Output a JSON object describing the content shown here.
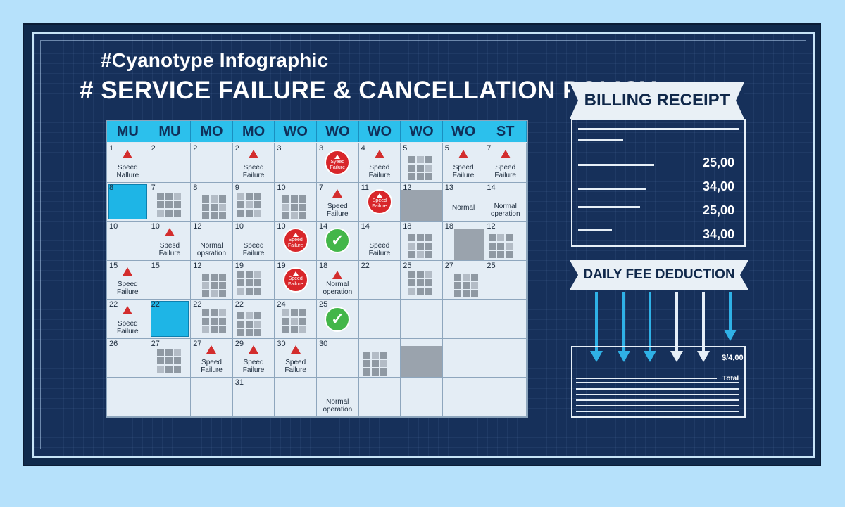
{
  "header": {
    "subtitle": "#Cyanotype Infographic",
    "title": "# SERVICE FAILURE & CANCELLATION POLICY"
  },
  "calendar": {
    "day_headers": [
      "MU",
      "MU",
      "MO",
      "MO",
      "WO",
      "WO",
      "WO",
      "WO",
      "WO",
      "ST"
    ],
    "rows": [
      [
        {
          "num": "1",
          "icon": "warning-triangle",
          "label": "Speed\nNallure"
        },
        {
          "num": "2"
        },
        {
          "num": "2"
        },
        {
          "num": "2",
          "icon": "warning-triangle",
          "label": "Speed\nFailure"
        },
        {
          "num": "3"
        },
        {
          "num": "3",
          "icon": "red-circle",
          "circle_text": "Syeed\nFailure"
        },
        {
          "num": "4",
          "icon": "warning-triangle",
          "label": "Speed\nFailure"
        },
        {
          "num": "5",
          "pattern": "grid"
        },
        {
          "num": "5",
          "icon": "warning-triangle",
          "label": "Speed\nFailure"
        },
        {
          "num": "7",
          "icon": "warning-triangle",
          "label": "Speed\nFailure"
        }
      ],
      [
        {
          "num": "8",
          "fill": "blue"
        },
        {
          "num": "7",
          "pattern": "grid"
        },
        {
          "num": "8",
          "pattern": "grid"
        },
        {
          "num": "9",
          "pattern": "grid"
        },
        {
          "num": "10",
          "pattern": "grid"
        },
        {
          "num": "7",
          "icon": "warning-triangle",
          "label": "Speed\nFailure"
        },
        {
          "num": "11",
          "icon": "red-circle",
          "circle_text": "Speed\nFailure"
        },
        {
          "num": "12",
          "pattern": "shade"
        },
        {
          "num": "13",
          "label": "Normal"
        },
        {
          "num": "14",
          "label": "Normal\noperation"
        }
      ],
      [
        {
          "num": "10"
        },
        {
          "num": "10",
          "icon": "warning-triangle",
          "label": "Spesd\nFailure"
        },
        {
          "num": "12",
          "label": "Normal\nopsration"
        },
        {
          "num": "10",
          "label": "Speed\nFailure"
        },
        {
          "num": "10",
          "icon": "red-circle",
          "circle_text": "Speed\nFailure"
        },
        {
          "num": "14",
          "icon": "green-check"
        },
        {
          "num": "14",
          "label": "Speed\nFailure"
        },
        {
          "num": "18",
          "pattern": "grid"
        },
        {
          "num": "18",
          "pattern": "shade"
        },
        {
          "num": "12",
          "pattern": "grid"
        }
      ],
      [
        {
          "num": "15",
          "icon": "warning-triangle",
          "label": "Speed\nFailure"
        },
        {
          "num": "15"
        },
        {
          "num": "12",
          "pattern": "grid"
        },
        {
          "num": "19",
          "pattern": "grid"
        },
        {
          "num": "19",
          "icon": "red-circle",
          "circle_text": "Speed\nFailure"
        },
        {
          "num": "18",
          "icon": "warning-triangle",
          "label": "Normal\noperation"
        },
        {
          "num": "22"
        },
        {
          "num": "25",
          "pattern": "grid"
        },
        {
          "num": "27",
          "pattern": "grid"
        },
        {
          "num": "25"
        }
      ],
      [
        {
          "num": "22",
          "icon": "warning-triangle",
          "label": "Speed\nFailure"
        },
        {
          "num": "22",
          "fill": "blue"
        },
        {
          "num": "22",
          "pattern": "grid"
        },
        {
          "num": "22",
          "pattern": "grid"
        },
        {
          "num": "24",
          "pattern": "grid"
        },
        {
          "num": "25",
          "icon": "green-check"
        },
        {
          "num": ""
        },
        {
          "num": ""
        },
        {
          "num": ""
        },
        {
          "num": ""
        }
      ],
      [
        {
          "num": "26"
        },
        {
          "num": "27",
          "pattern": "grid"
        },
        {
          "num": "27",
          "icon": "warning-triangle",
          "label": "Speed\nFailure"
        },
        {
          "num": "29",
          "icon": "warning-triangle",
          "label": "Speed\nFailure"
        },
        {
          "num": "30",
          "icon": "warning-triangle",
          "label": "Speed\nFailure"
        },
        {
          "num": "30"
        },
        {
          "num": "",
          "pattern": "grid"
        },
        {
          "num": "",
          "pattern": "shade"
        },
        {
          "num": ""
        },
        {
          "num": ""
        }
      ],
      [
        {
          "num": ""
        },
        {
          "num": ""
        },
        {
          "num": ""
        },
        {
          "num": "31"
        },
        {
          "num": ""
        },
        {
          "num": "",
          "label": "Normal\noperation"
        },
        {
          "num": ""
        },
        {
          "num": ""
        },
        {
          "num": ""
        },
        {
          "num": ""
        }
      ]
    ]
  },
  "billing_receipt": {
    "title": "BILLING RECEIPT",
    "amounts": [
      "25,00",
      "34,00",
      "25,00",
      "34,00"
    ]
  },
  "daily_fee": {
    "title": "DAILY FEE DEDUCTION",
    "amount": "$/4,00",
    "total_label": "Total"
  },
  "colors": {
    "background": "#b6e1fb",
    "board": "#16305a",
    "header_cyan": "#2cc0ec",
    "alert_red": "#d8262a",
    "ok_green": "#43b649",
    "arrow_blue": "#2fb1e6"
  }
}
